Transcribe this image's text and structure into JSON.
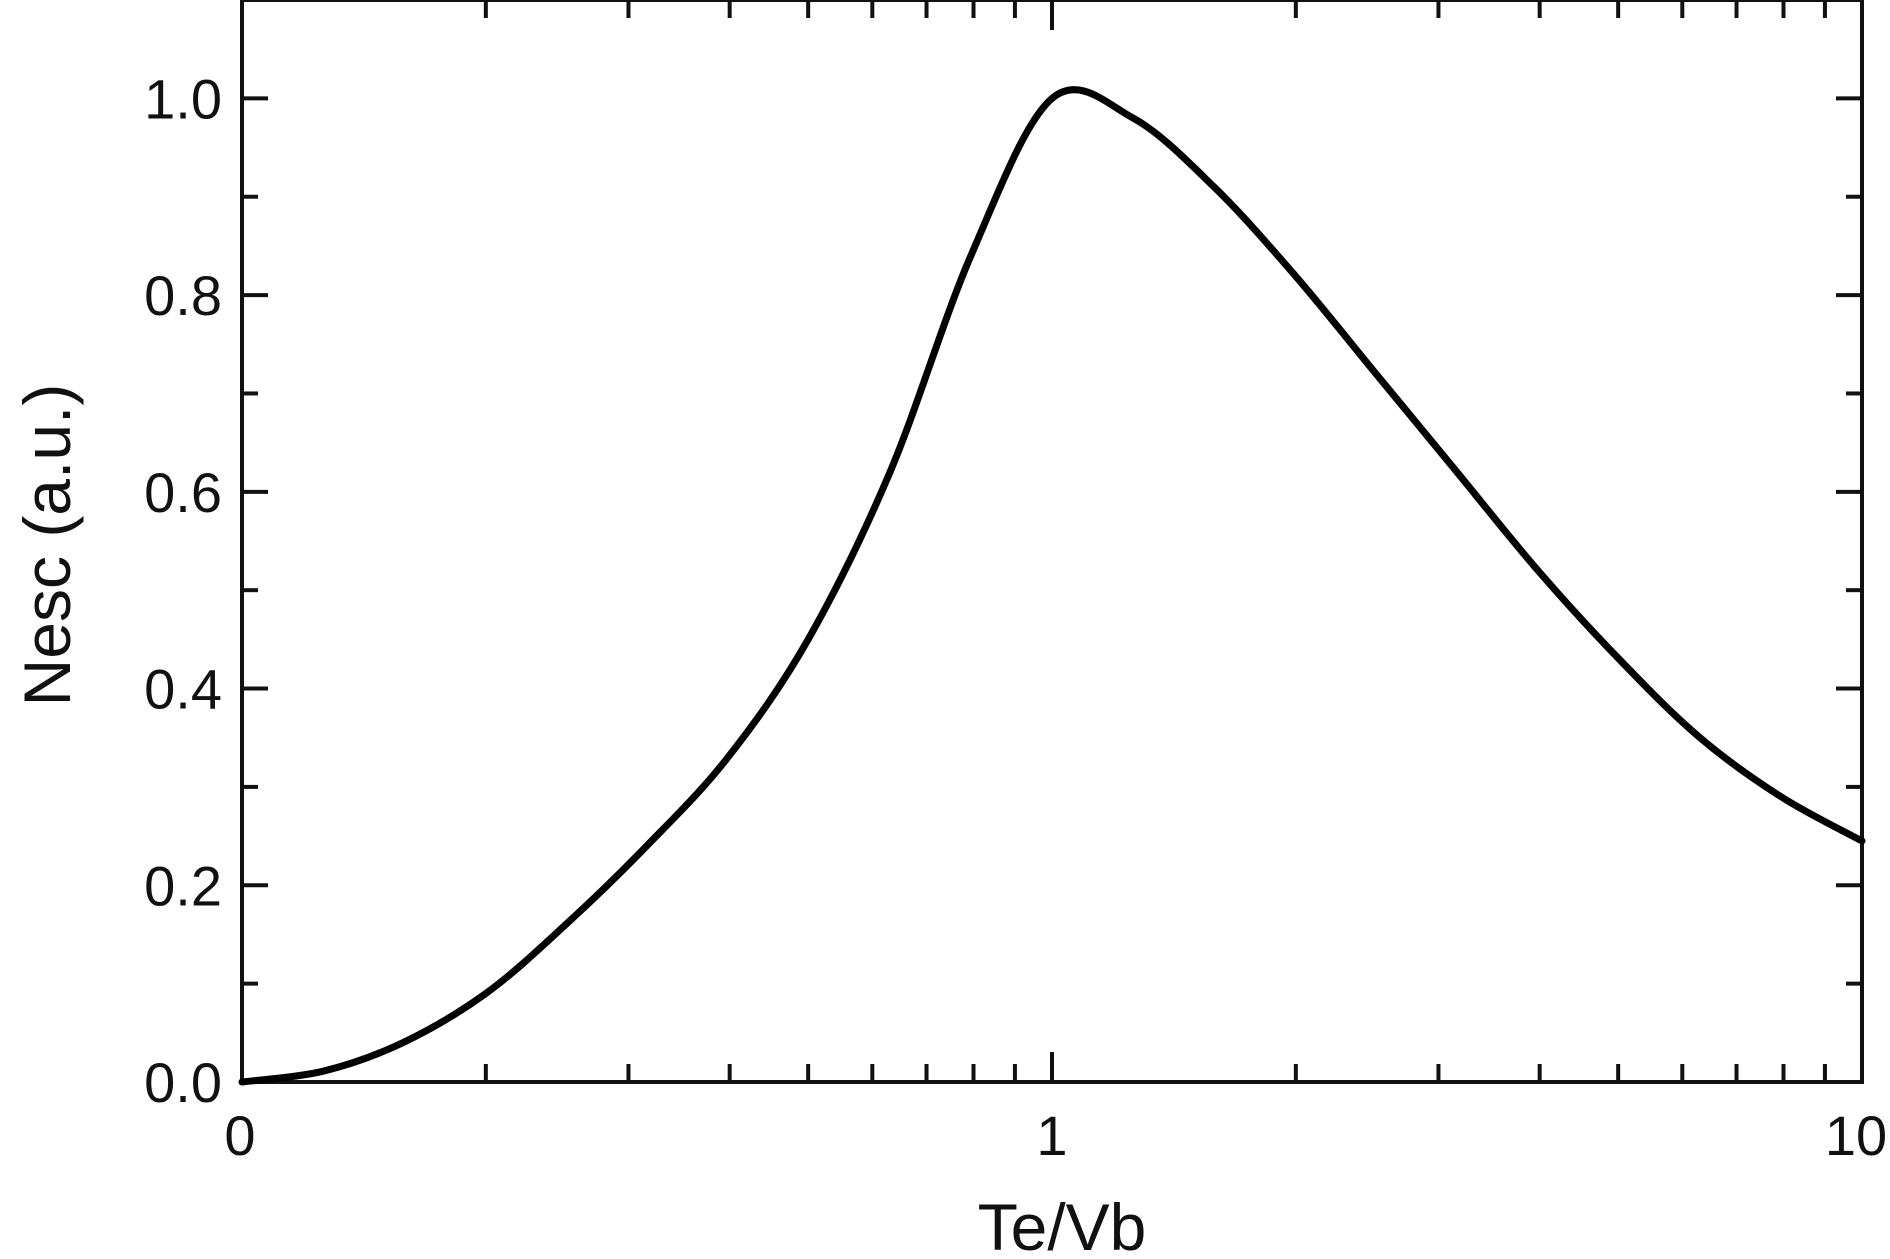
{
  "chart_data": {
    "type": "line",
    "xlabel": "Te/Vb",
    "ylabel": "Nesc (a.u.)",
    "xscale": "log",
    "xlim": [
      0.1,
      10
    ],
    "ylim": [
      0,
      1.1
    ],
    "x_tick_labels": [
      "0",
      "1",
      "10"
    ],
    "y_ticks": [
      0.0,
      0.2,
      0.4,
      0.6,
      0.8,
      1.0
    ],
    "y_tick_labels": [
      "0.0",
      "0.2",
      "0.4",
      "0.6",
      "0.8",
      "1.0"
    ],
    "grid": false,
    "legend": "none",
    "line_color": "#000000",
    "series": [
      {
        "x": [
          0.1,
          0.126,
          0.158,
          0.2,
          0.251,
          0.316,
          0.398,
          0.5,
          0.631,
          0.794,
          1.0,
          1.259,
          1.585,
          1.995,
          2.512,
          3.162,
          3.981,
          5.012,
          6.31,
          7.943,
          10.0
        ],
        "values": [
          0.0,
          0.011,
          0.04,
          0.09,
          0.16,
          0.24,
          0.33,
          0.45,
          0.62,
          0.84,
          1.0,
          0.98,
          0.91,
          0.82,
          0.72,
          0.62,
          0.52,
          0.43,
          0.35,
          0.29,
          0.245
        ]
      }
    ]
  }
}
